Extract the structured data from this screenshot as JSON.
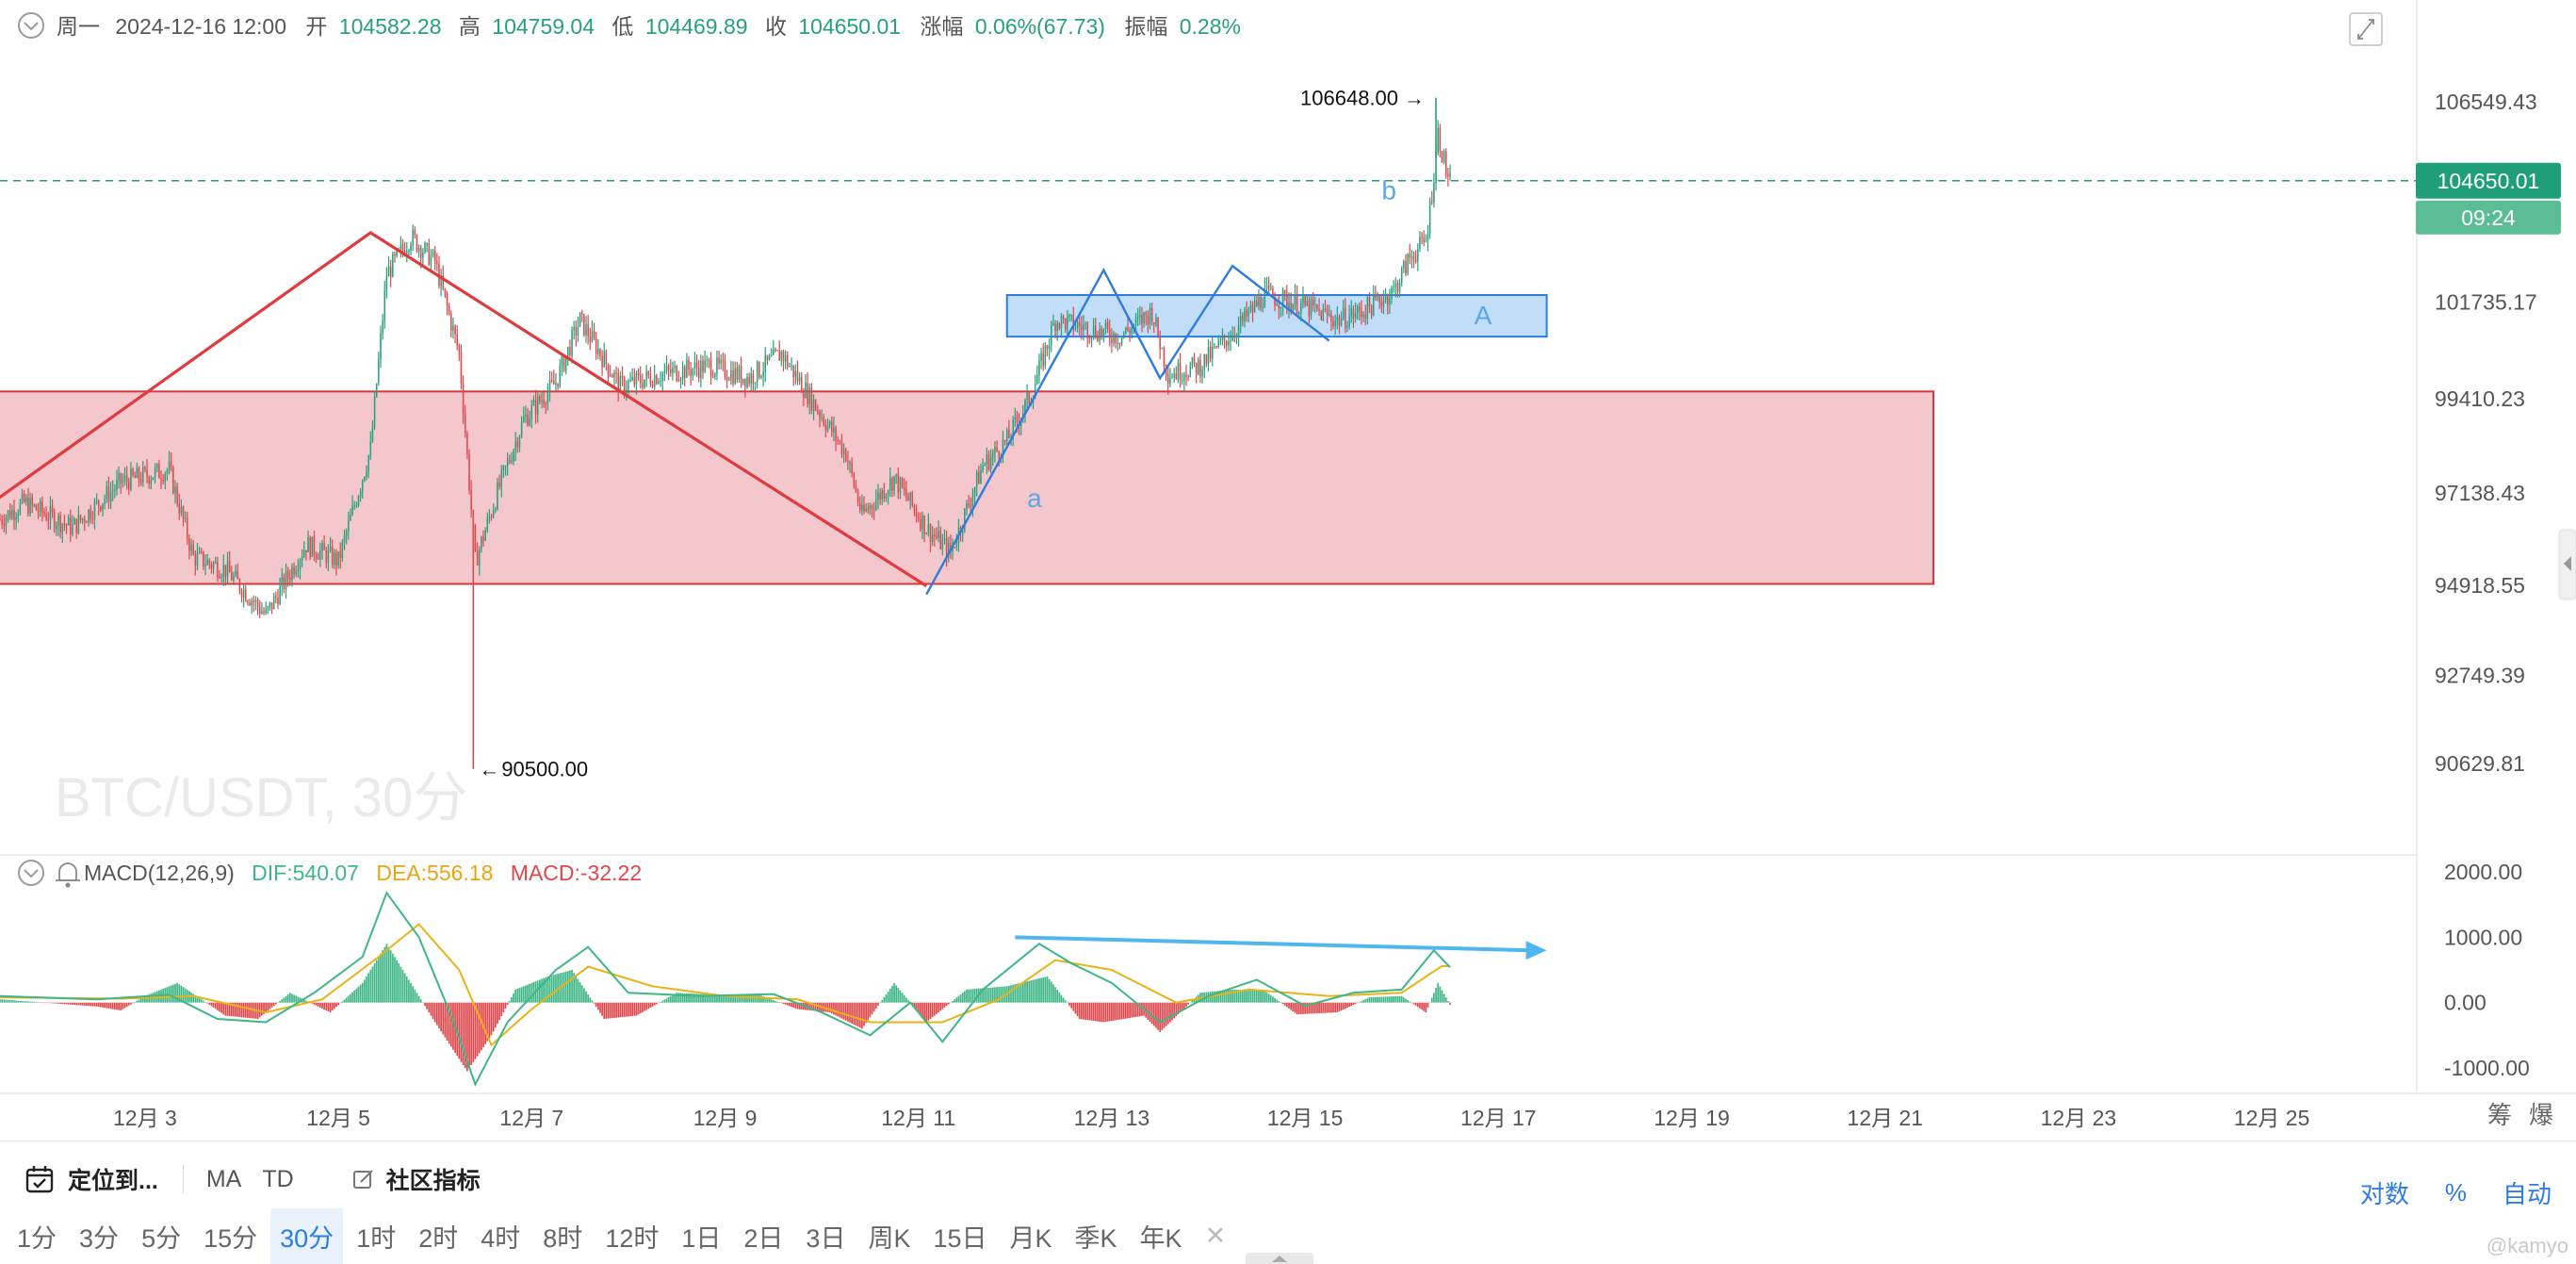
{
  "header": {
    "day": "周一",
    "datetime": "2024-12-16 12:00",
    "open_label": "开",
    "open": "104582.28",
    "high_label": "高",
    "high": "104759.04",
    "low_label": "低",
    "low": "104469.89",
    "close_label": "收",
    "close": "104650.01",
    "change_label": "涨幅",
    "change": "0.06%(67.73)",
    "amp_label": "振幅",
    "amp": "0.28%"
  },
  "chart_data": [
    {
      "type": "candlestick",
      "title": "BTC/USDT, 30分",
      "y_ticks": [
        106549.43,
        101735.17,
        99410.23,
        97138.43,
        94918.55,
        92749.39,
        90629.81
      ],
      "y_tick_labels": [
        "106549.43",
        "101735.17",
        "99410.23",
        "97138.43",
        "94918.55",
        "92749.39",
        "90629.81"
      ],
      "x_ticks": [
        "12月 3",
        "12月 5",
        "12月 7",
        "12月 9",
        "12月 11",
        "12月 13",
        "12月 15",
        "12月 17",
        "12月 19",
        "12月 21",
        "12月 23",
        "12月 25"
      ],
      "x_range": [
        "2024-12-01T12:00",
        "2024-12-26T12:00"
      ],
      "last_price": "104650.01",
      "countdown": "09:24",
      "max_label": "106648.00",
      "min_label": "90500.00",
      "wave_labels": [
        "a",
        "b",
        "A"
      ],
      "colors": {
        "up": "#26a17b",
        "down": "#e0474c",
        "last_line": "#1f9e7a",
        "triangle": "#e0393e",
        "wave": "#2e7ce0"
      },
      "keypoints": [
        {
          "t": "2024-12-01T12:00",
          "p": 96500
        },
        {
          "t": "2024-12-01T18:00",
          "p": 96900
        },
        {
          "t": "2024-12-02T06:00",
          "p": 96300
        },
        {
          "t": "2024-12-02T18:00",
          "p": 97400
        },
        {
          "t": "2024-12-03T06:00",
          "p": 97700
        },
        {
          "t": "2024-12-03T12:00",
          "p": 95600
        },
        {
          "t": "2024-12-03T20:00",
          "p": 95300
        },
        {
          "t": "2024-12-04T06:00",
          "p": 94200
        },
        {
          "t": "2024-12-04T16:00",
          "p": 95900
        },
        {
          "t": "2024-12-05T00:00",
          "p": 95500
        },
        {
          "t": "2024-12-05T08:00",
          "p": 98200
        },
        {
          "t": "2024-12-05T12:00",
          "p": 102400
        },
        {
          "t": "2024-12-05T18:00",
          "p": 103300
        },
        {
          "t": "2024-12-06T00:00",
          "p": 102700
        },
        {
          "t": "2024-12-06T06:00",
          "p": 100500
        },
        {
          "t": "2024-12-06T10:00",
          "p": 95500
        },
        {
          "t": "2024-12-06T16:00",
          "p": 97300
        },
        {
          "t": "2024-12-06T22:00",
          "p": 98900
        },
        {
          "t": "2024-12-07T06:00",
          "p": 99800
        },
        {
          "t": "2024-12-07T12:00",
          "p": 101300
        },
        {
          "t": "2024-12-07T22:00",
          "p": 99700
        },
        {
          "t": "2024-12-08T08:00",
          "p": 100000
        },
        {
          "t": "2024-12-08T20:00",
          "p": 100200
        },
        {
          "t": "2024-12-09T06:00",
          "p": 99900
        },
        {
          "t": "2024-12-09T14:00",
          "p": 100500
        },
        {
          "t": "2024-12-09T22:00",
          "p": 99300
        },
        {
          "t": "2024-12-10T06:00",
          "p": 98100
        },
        {
          "t": "2024-12-10T10:00",
          "p": 96600
        },
        {
          "t": "2024-12-10T18:00",
          "p": 97500
        },
        {
          "t": "2024-12-11T02:00",
          "p": 96300
        },
        {
          "t": "2024-12-11T08:00",
          "p": 95700
        },
        {
          "t": "2024-12-11T16:00",
          "p": 97800
        },
        {
          "t": "2024-12-11T22:00",
          "p": 98400
        },
        {
          "t": "2024-12-12T04:00",
          "p": 99500
        },
        {
          "t": "2024-12-12T10:00",
          "p": 101300
        },
        {
          "t": "2024-12-12T18:00",
          "p": 101100
        },
        {
          "t": "2024-12-13T02:00",
          "p": 100900
        },
        {
          "t": "2024-12-13T10:00",
          "p": 101500
        },
        {
          "t": "2024-12-13T14:00",
          "p": 100000
        },
        {
          "t": "2024-12-13T22:00",
          "p": 100200
        },
        {
          "t": "2024-12-14T08:00",
          "p": 101200
        },
        {
          "t": "2024-12-14T14:00",
          "p": 101900
        },
        {
          "t": "2024-12-14T22:00",
          "p": 101700
        },
        {
          "t": "2024-12-15T08:00",
          "p": 101300
        },
        {
          "t": "2024-12-15T14:00",
          "p": 101500
        },
        {
          "t": "2024-12-15T22:00",
          "p": 102000
        },
        {
          "t": "2024-12-16T02:00",
          "p": 102800
        },
        {
          "t": "2024-12-16T06:00",
          "p": 103200
        },
        {
          "t": "2024-12-16T08:00",
          "p": 104800
        },
        {
          "t": "2024-12-16T09:00",
          "p": 105800
        },
        {
          "t": "2024-12-16T11:00",
          "p": 104900
        },
        {
          "t": "2024-12-16T12:00",
          "p": 104650
        }
      ],
      "annotations": {
        "triangle": [
          {
            "t": "2024-12-01T10:00",
            "p": 96900
          },
          {
            "t": "2024-12-05T08:00",
            "p": 103400
          },
          {
            "t": "2024-12-11T02:00",
            "p": 94900
          }
        ],
        "red_zone": {
          "t0": "2024-12-01T10:00",
          "t1": "2024-12-21T12:00",
          "p0": 94950,
          "p1": 99580
        },
        "blue_zone": {
          "t0": "2024-12-11T22:00",
          "t1": "2024-12-17T12:00",
          "p0": 100900,
          "p1": 101900
        },
        "wave": [
          {
            "t": "2024-12-11T02:00",
            "p": 94700
          },
          {
            "t": "2024-12-12T22:00",
            "p": 102500
          },
          {
            "t": "2024-12-13T12:00",
            "p": 99900
          },
          {
            "t": "2024-12-14T06:00",
            "p": 102600
          },
          {
            "t": "2024-12-15T06:00",
            "p": 100800
          }
        ]
      }
    },
    {
      "type": "histogram",
      "title": "MACD(12,26,9)",
      "dif_label": "DIF:540.07",
      "dea_label": "DEA:556.18",
      "macd_label": "MACD:-32.22",
      "y_ticks": [
        2000,
        1000,
        0,
        -1000
      ],
      "y_tick_labels": [
        "2000.00",
        "1000.00",
        "0.00",
        "-1000.00"
      ],
      "colors": {
        "dif": "#3fb686",
        "dea": "#e8b317",
        "pos": "#3fb686",
        "neg": "#e0474c",
        "arrow": "#4fb6ee"
      },
      "dif_points": [
        {
          "t": "2024-12-01T12:00",
          "v": 100
        },
        {
          "t": "2024-12-02T12:00",
          "v": 50
        },
        {
          "t": "2024-12-03T06:00",
          "v": 120
        },
        {
          "t": "2024-12-03T18:00",
          "v": -250
        },
        {
          "t": "2024-12-04T06:00",
          "v": -300
        },
        {
          "t": "2024-12-04T18:00",
          "v": 150
        },
        {
          "t": "2024-12-05T06:00",
          "v": 700
        },
        {
          "t": "2024-12-05T12:00",
          "v": 1680
        },
        {
          "t": "2024-12-05T20:00",
          "v": 1000
        },
        {
          "t": "2024-12-06T04:00",
          "v": -200
        },
        {
          "t": "2024-12-06T10:00",
          "v": -1250
        },
        {
          "t": "2024-12-06T18:00",
          "v": -300
        },
        {
          "t": "2024-12-07T06:00",
          "v": 500
        },
        {
          "t": "2024-12-07T14:00",
          "v": 850
        },
        {
          "t": "2024-12-08T00:00",
          "v": 150
        },
        {
          "t": "2024-12-08T18:00",
          "v": 100
        },
        {
          "t": "2024-12-09T12:00",
          "v": 130
        },
        {
          "t": "2024-12-10T00:00",
          "v": -150
        },
        {
          "t": "2024-12-10T12:00",
          "v": -500
        },
        {
          "t": "2024-12-10T22:00",
          "v": 0
        },
        {
          "t": "2024-12-11T06:00",
          "v": -600
        },
        {
          "t": "2024-12-11T16:00",
          "v": 200
        },
        {
          "t": "2024-12-12T06:00",
          "v": 900
        },
        {
          "t": "2024-12-12T14:00",
          "v": 600
        },
        {
          "t": "2024-12-13T00:00",
          "v": 300
        },
        {
          "t": "2024-12-13T12:00",
          "v": -300
        },
        {
          "t": "2024-12-14T00:00",
          "v": 100
        },
        {
          "t": "2024-12-14T12:00",
          "v": 350
        },
        {
          "t": "2024-12-15T00:00",
          "v": -50
        },
        {
          "t": "2024-12-15T12:00",
          "v": 150
        },
        {
          "t": "2024-12-16T00:00",
          "v": 200
        },
        {
          "t": "2024-12-16T08:00",
          "v": 800
        },
        {
          "t": "2024-12-16T12:00",
          "v": 540
        }
      ],
      "dea_points": [
        {
          "t": "2024-12-01T12:00",
          "v": 80
        },
        {
          "t": "2024-12-02T18:00",
          "v": 60
        },
        {
          "t": "2024-12-03T12:00",
          "v": 100
        },
        {
          "t": "2024-12-04T06:00",
          "v": -150
        },
        {
          "t": "2024-12-04T20:00",
          "v": 50
        },
        {
          "t": "2024-12-05T10:00",
          "v": 700
        },
        {
          "t": "2024-12-05T20:00",
          "v": 1200
        },
        {
          "t": "2024-12-06T06:00",
          "v": 500
        },
        {
          "t": "2024-12-06T14:00",
          "v": -650
        },
        {
          "t": "2024-12-07T00:00",
          "v": -100
        },
        {
          "t": "2024-12-07T14:00",
          "v": 550
        },
        {
          "t": "2024-12-08T06:00",
          "v": 250
        },
        {
          "t": "2024-12-09T00:00",
          "v": 100
        },
        {
          "t": "2024-12-09T18:00",
          "v": 50
        },
        {
          "t": "2024-12-10T12:00",
          "v": -300
        },
        {
          "t": "2024-12-11T06:00",
          "v": -300
        },
        {
          "t": "2024-12-11T20:00",
          "v": 50
        },
        {
          "t": "2024-12-12T10:00",
          "v": 650
        },
        {
          "t": "2024-12-13T00:00",
          "v": 500
        },
        {
          "t": "2024-12-13T16:00",
          "v": 0
        },
        {
          "t": "2024-12-14T10:00",
          "v": 200
        },
        {
          "t": "2024-12-15T06:00",
          "v": 100
        },
        {
          "t": "2024-12-16T00:00",
          "v": 150
        },
        {
          "t": "2024-12-16T10:00",
          "v": 560
        },
        {
          "t": "2024-12-16T12:00",
          "v": 556
        }
      ],
      "hist_points": [
        {
          "t": "2024-12-01T12:00",
          "v": 50
        },
        {
          "t": "2024-12-02T12:00",
          "v": -60
        },
        {
          "t": "2024-12-02T18:00",
          "v": -120
        },
        {
          "t": "2024-12-03T00:00",
          "v": 100
        },
        {
          "t": "2024-12-03T08:00",
          "v": 300
        },
        {
          "t": "2024-12-03T20:00",
          "v": -200
        },
        {
          "t": "2024-12-04T04:00",
          "v": -250
        },
        {
          "t": "2024-12-04T12:00",
          "v": 150
        },
        {
          "t": "2024-12-04T22:00",
          "v": -150
        },
        {
          "t": "2024-12-05T06:00",
          "v": 300
        },
        {
          "t": "2024-12-05T12:00",
          "v": 900
        },
        {
          "t": "2024-12-05T18:00",
          "v": 300
        },
        {
          "t": "2024-12-06T00:00",
          "v": -300
        },
        {
          "t": "2024-12-06T08:00",
          "v": -1050
        },
        {
          "t": "2024-12-06T14:00",
          "v": -500
        },
        {
          "t": "2024-12-06T20:00",
          "v": 200
        },
        {
          "t": "2024-12-07T04:00",
          "v": 400
        },
        {
          "t": "2024-12-07T10:00",
          "v": 500
        },
        {
          "t": "2024-12-07T18:00",
          "v": -250
        },
        {
          "t": "2024-12-08T02:00",
          "v": -200
        },
        {
          "t": "2024-12-08T12:00",
          "v": 150
        },
        {
          "t": "2024-12-08T22:00",
          "v": 120
        },
        {
          "t": "2024-12-09T08:00",
          "v": 130
        },
        {
          "t": "2024-12-09T18:00",
          "v": -100
        },
        {
          "t": "2024-12-10T02:00",
          "v": -150
        },
        {
          "t": "2024-12-10T10:00",
          "v": -400
        },
        {
          "t": "2024-12-10T18:00",
          "v": 300
        },
        {
          "t": "2024-12-11T02:00",
          "v": -300
        },
        {
          "t": "2024-12-11T12:00",
          "v": 200
        },
        {
          "t": "2024-12-11T22:00",
          "v": 250
        },
        {
          "t": "2024-12-12T08:00",
          "v": 400
        },
        {
          "t": "2024-12-12T16:00",
          "v": -250
        },
        {
          "t": "2024-12-12T22:00",
          "v": -300
        },
        {
          "t": "2024-12-13T08:00",
          "v": -200
        },
        {
          "t": "2024-12-13T12:00",
          "v": -450
        },
        {
          "t": "2024-12-13T22:00",
          "v": 150
        },
        {
          "t": "2024-12-14T06:00",
          "v": 200
        },
        {
          "t": "2024-12-14T14:00",
          "v": 180
        },
        {
          "t": "2024-12-14T22:00",
          "v": -180
        },
        {
          "t": "2024-12-15T08:00",
          "v": -150
        },
        {
          "t": "2024-12-15T16:00",
          "v": 80
        },
        {
          "t": "2024-12-16T00:00",
          "v": 100
        },
        {
          "t": "2024-12-16T06:00",
          "v": -150
        },
        {
          "t": "2024-12-16T09:00",
          "v": 300
        },
        {
          "t": "2024-12-16T12:00",
          "v": -32
        }
      ],
      "divergence_line": [
        {
          "t": "2024-12-12T00:00",
          "v": 1000
        },
        {
          "t": "2024-12-17T12:00",
          "v": 800
        }
      ]
    }
  ],
  "right_side_labels": {
    "chip": "筹",
    "burst": "爆"
  },
  "toolbar": {
    "locate": "定位到...",
    "ma": "MA",
    "td": "TD",
    "community": "社区指标",
    "log": "对数",
    "percent": "%",
    "auto": "自动"
  },
  "timeframes": [
    "1分",
    "3分",
    "5分",
    "15分",
    "30分",
    "1时",
    "2时",
    "4时",
    "8时",
    "12时",
    "1日",
    "2日",
    "3日",
    "周K",
    "15日",
    "月K",
    "季K",
    "年K"
  ],
  "active_timeframe": "30分",
  "watermark": "@kamyo"
}
